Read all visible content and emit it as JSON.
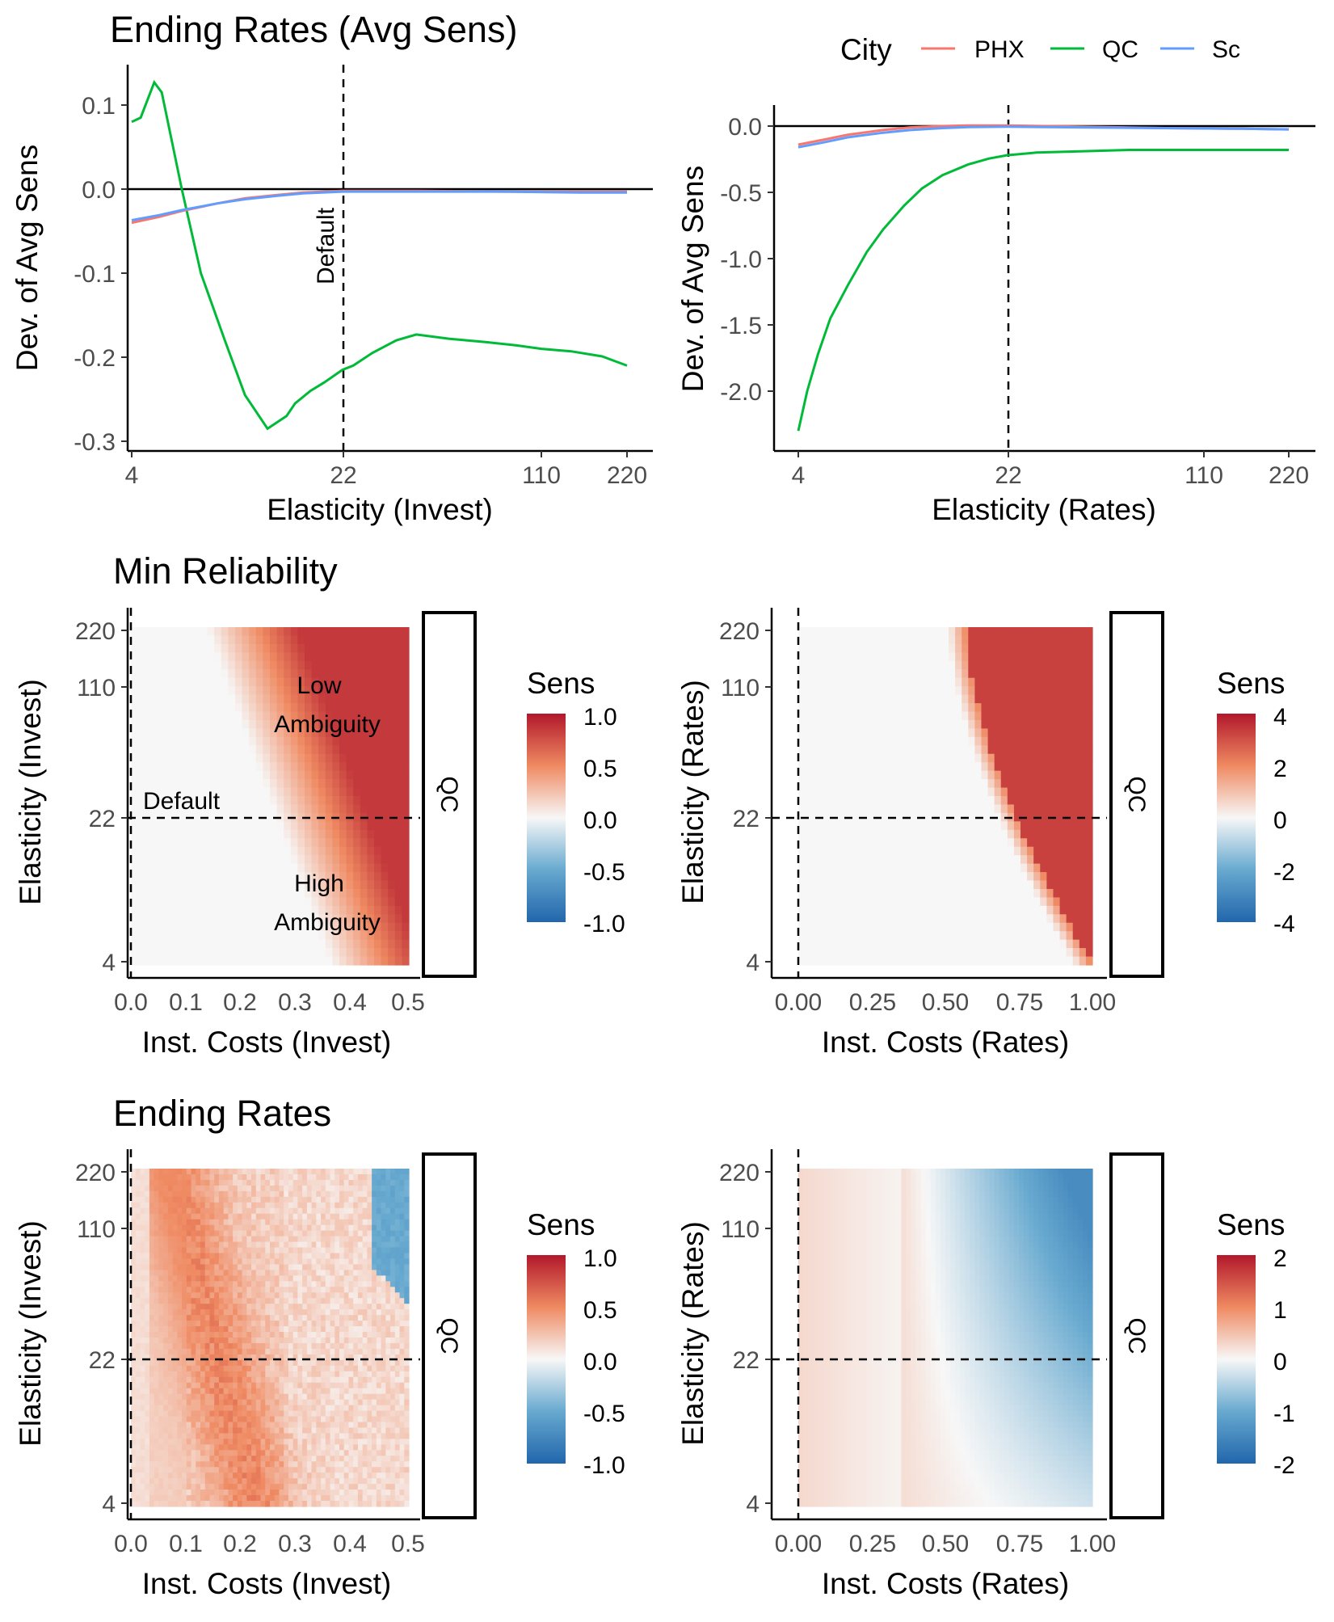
{
  "colors": {
    "PHX": "#F8766D",
    "QC": "#00BA38",
    "Sc": "#619CFF",
    "low": "#2166AC",
    "mid": "#F7F7F7",
    "high": "#B2182B"
  },
  "legend": {
    "title": "City",
    "items": [
      "PHX",
      "QC",
      "Sc"
    ]
  },
  "chart_data": [
    {
      "id": "p1",
      "type": "line",
      "title": "Ending Rates (Avg Sens)",
      "xlabel": "Elasticity (Invest)",
      "ylabel": "Dev. of Avg Sens",
      "xscale": "log",
      "xlim": [
        4,
        220
      ],
      "xticks": [
        "4",
        "22",
        "110",
        "220"
      ],
      "ylim": [
        -0.3,
        0.14
      ],
      "yticks": [
        "0.1",
        "0.0",
        "-0.1",
        "-0.2",
        "-0.3"
      ],
      "reference_x": 22,
      "reference_label": "Default",
      "series": [
        {
          "name": "QC",
          "x": [
            4,
            4.3,
            4.8,
            5.1,
            6,
            7,
            8.5,
            10,
            12,
            14,
            15,
            17,
            19,
            22,
            24,
            28,
            34,
            40,
            52,
            70,
            90,
            110,
            140,
            180,
            220
          ],
          "y": [
            0.08,
            0.085,
            0.127,
            0.115,
            0.0,
            -0.1,
            -0.18,
            -0.245,
            -0.285,
            -0.27,
            -0.255,
            -0.24,
            -0.23,
            -0.215,
            -0.21,
            -0.195,
            -0.18,
            -0.173,
            -0.178,
            -0.182,
            -0.186,
            -0.19,
            -0.193,
            -0.199,
            -0.21
          ]
        },
        {
          "name": "PHX",
          "x": [
            4,
            5,
            6,
            8,
            10,
            13,
            16,
            22,
            40,
            80,
            150,
            220
          ],
          "y": [
            -0.04,
            -0.033,
            -0.026,
            -0.017,
            -0.011,
            -0.007,
            -0.004,
            -0.002,
            -0.002,
            -0.003,
            -0.003,
            -0.003
          ]
        },
        {
          "name": "Sc",
          "x": [
            4,
            5,
            6,
            8,
            10,
            13,
            16,
            22,
            40,
            80,
            150,
            220
          ],
          "y": [
            -0.037,
            -0.031,
            -0.025,
            -0.017,
            -0.012,
            -0.008,
            -0.005,
            -0.003,
            -0.003,
            -0.003,
            -0.004,
            -0.004
          ]
        }
      ]
    },
    {
      "id": "p2",
      "type": "line",
      "title": "",
      "xlabel": "Elasticity (Rates)",
      "ylabel": "Dev. of Avg Sens",
      "xscale": "log",
      "xlim": [
        4,
        220
      ],
      "xticks": [
        "4",
        "22",
        "110",
        "220"
      ],
      "ylim": [
        -2.35,
        0.12
      ],
      "yticks": [
        "0.0",
        "-0.5",
        "-1.0",
        "-1.5",
        "-2.0"
      ],
      "reference_x": 22,
      "series": [
        {
          "name": "QC",
          "x": [
            4,
            4.3,
            4.7,
            5.2,
            6,
            7,
            8,
            9.5,
            11,
            13,
            16,
            19,
            22,
            28,
            40,
            60,
            100,
            150,
            220
          ],
          "y": [
            -2.3,
            -2.0,
            -1.72,
            -1.45,
            -1.2,
            -0.95,
            -0.78,
            -0.6,
            -0.47,
            -0.37,
            -0.29,
            -0.245,
            -0.22,
            -0.2,
            -0.19,
            -0.18,
            -0.18,
            -0.18,
            -0.18
          ]
        },
        {
          "name": "PHX",
          "x": [
            4,
            5,
            6,
            8,
            10,
            13,
            16,
            22,
            40,
            80,
            150,
            220
          ],
          "y": [
            -0.14,
            -0.1,
            -0.065,
            -0.03,
            -0.01,
            0.0,
            0.005,
            0.005,
            -0.005,
            -0.015,
            -0.02,
            -0.025
          ]
        },
        {
          "name": "Sc",
          "x": [
            4,
            5,
            6,
            8,
            10,
            13,
            16,
            22,
            40,
            80,
            150,
            220
          ],
          "y": [
            -0.16,
            -0.12,
            -0.085,
            -0.05,
            -0.03,
            -0.015,
            -0.008,
            -0.005,
            -0.01,
            -0.015,
            -0.02,
            -0.025
          ]
        }
      ]
    },
    {
      "id": "p3",
      "type": "heatmap",
      "title": "Min Reliability",
      "xlabel": "Inst. Costs (Invest)",
      "ylabel": "Elasticity (Invest)",
      "xlim": [
        0,
        0.5
      ],
      "xticks": [
        "0.0",
        "0.1",
        "0.2",
        "0.3",
        "0.4",
        "0.5"
      ],
      "yscale": "log",
      "ylim": [
        4,
        220
      ],
      "yticks": [
        "220",
        "110",
        "22",
        "4"
      ],
      "facet": "QC",
      "default_x": 0,
      "default_y": 22,
      "annotations": {
        "default": "Default",
        "low1": "Low",
        "low2": "Ambiguity",
        "high1": "High",
        "high2": "Ambiguity"
      },
      "legend": {
        "title": "Sens",
        "range": [
          -1,
          1
        ],
        "labels": [
          "1.0",
          "0.5",
          "0.0",
          "-0.5",
          "-1.0"
        ]
      },
      "pattern": "upper-right region positive, increasing to 1.0 toward x=0.5 and high elasticity"
    },
    {
      "id": "p4",
      "type": "heatmap",
      "title": "",
      "xlabel": "Inst. Costs (Rates)",
      "ylabel": "Elasticity (Rates)",
      "xlim": [
        0,
        1
      ],
      "xticks": [
        "0.00",
        "0.25",
        "0.50",
        "0.75",
        "1.00"
      ],
      "yscale": "log",
      "ylim": [
        4,
        220
      ],
      "yticks": [
        "220",
        "110",
        "22",
        "4"
      ],
      "facet": "QC",
      "default_x": 0,
      "default_y": 22,
      "legend": {
        "title": "Sens",
        "range": [
          -4,
          4
        ],
        "labels": [
          "4",
          "2",
          "0",
          "-2",
          "-4"
        ]
      },
      "pattern": "saturated positive right of a boundary curving from x≈0.57 at top to x≈1.0 at bottom"
    },
    {
      "id": "p5",
      "type": "heatmap",
      "title": "Ending Rates",
      "xlabel": "Inst. Costs (Invest)",
      "ylabel": "Elasticity (Invest)",
      "xlim": [
        0,
        0.5
      ],
      "xticks": [
        "0.0",
        "0.1",
        "0.2",
        "0.3",
        "0.4",
        "0.5"
      ],
      "yscale": "log",
      "ylim": [
        4,
        220
      ],
      "yticks": [
        "220",
        "110",
        "22",
        "4"
      ],
      "facet": "QC",
      "default_x": 0,
      "default_y": 22,
      "legend": {
        "title": "Sens",
        "range": [
          -1,
          1
        ],
        "labels": [
          "1.0",
          "0.5",
          "0.0",
          "-0.5",
          "-1.0"
        ]
      },
      "pattern": "mostly mildly positive with a stronger diagonal band; negative patch in the top-right corner"
    },
    {
      "id": "p6",
      "type": "heatmap",
      "title": "",
      "xlabel": "Inst. Costs (Rates)",
      "ylabel": "Elasticity (Rates)",
      "xlim": [
        0,
        1
      ],
      "xticks": [
        "0.00",
        "0.25",
        "0.50",
        "0.75",
        "1.00"
      ],
      "yscale": "log",
      "ylim": [
        4,
        220
      ],
      "yticks": [
        "220",
        "110",
        "22",
        "4"
      ],
      "facet": "QC",
      "default_x": 0,
      "default_y": 22,
      "legend": {
        "title": "Sens",
        "range": [
          -2,
          2
        ],
        "labels": [
          "2",
          "1",
          "0",
          "-1",
          "-2"
        ]
      },
      "pattern": "slightly positive on the left, increasingly negative toward high cost and high elasticity"
    }
  ]
}
